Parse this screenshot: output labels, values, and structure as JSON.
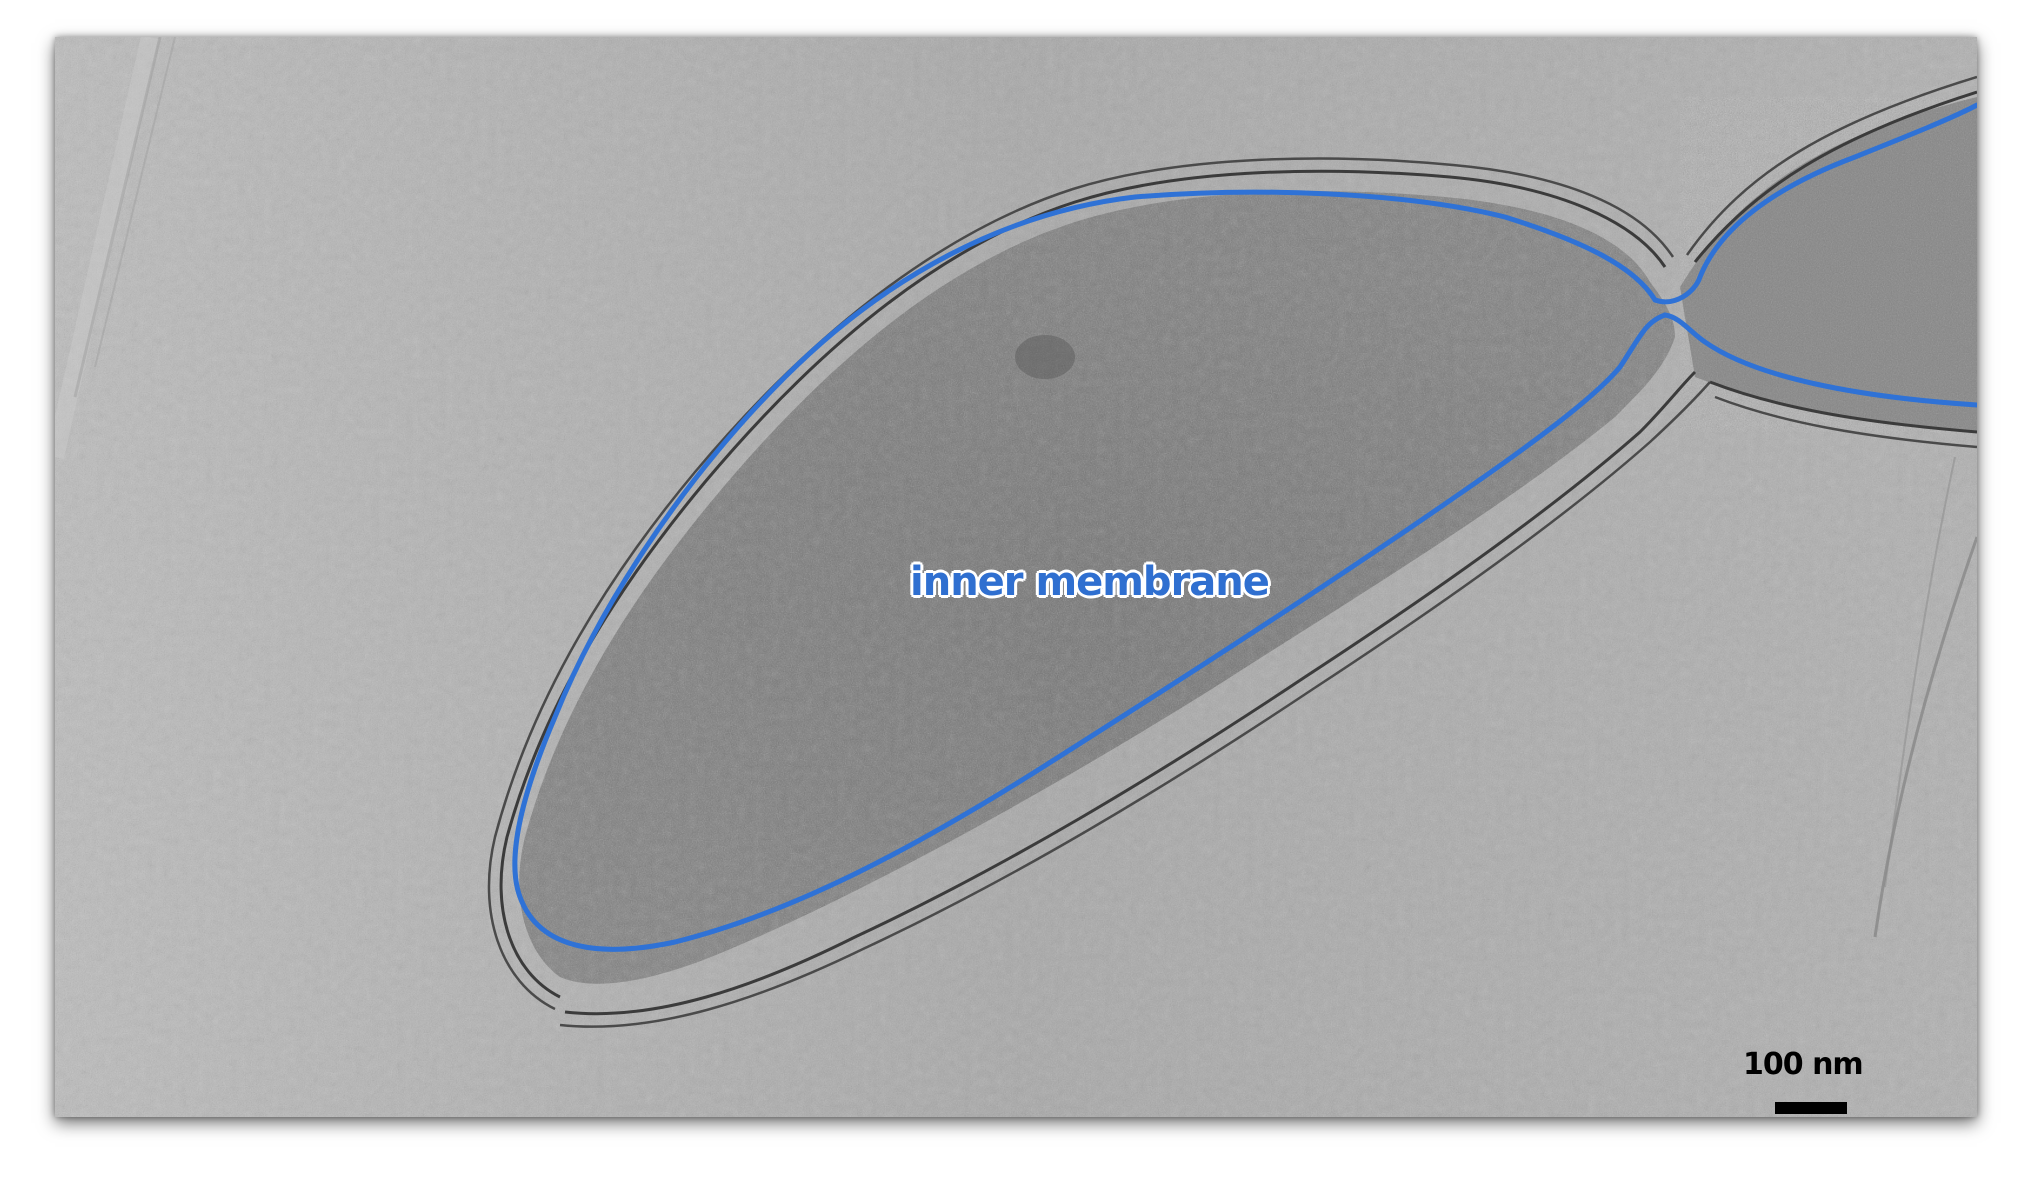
{
  "image": {
    "annotation_label": "inner membrane",
    "scale_bar_label": "100 nm",
    "colors": {
      "annotation": "#2f6fd0",
      "membrane_trace": "#2f72d6",
      "background": "#a9a9a9"
    }
  }
}
